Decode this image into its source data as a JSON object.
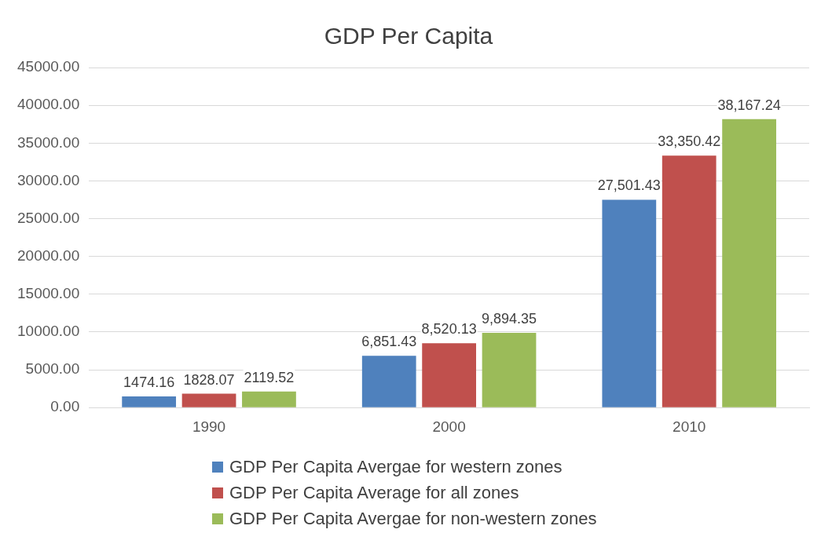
{
  "chart_data": {
    "type": "bar",
    "title": "GDP Per Capita",
    "categories": [
      "1990",
      "2000",
      "2010"
    ],
    "series": [
      {
        "name": "GDP Per Capita Avergae for western zones",
        "color": "#4f81bd",
        "values": [
          1474.16,
          6851.43,
          27501.43
        ],
        "value_labels": [
          "1474.16",
          "6,851.43",
          "27,501.43"
        ]
      },
      {
        "name": "GDP Per Capita Average for all zones",
        "color": "#c0504d",
        "values": [
          1828.07,
          8520.13,
          33350.42
        ],
        "value_labels": [
          "1828.07",
          "8,520.13",
          "33,350.42"
        ]
      },
      {
        "name": "GDP Per Capita Avergae for non-western zones",
        "color": "#9bbb59",
        "values": [
          2119.52,
          9894.35,
          38167.24
        ],
        "value_labels": [
          "2119.52",
          "9,894.35",
          "38,167.24"
        ]
      }
    ],
    "ylim": [
      0,
      45000
    ],
    "yticks": [
      {
        "value": 0,
        "label": "0.00"
      },
      {
        "value": 5000,
        "label": "5000.00"
      },
      {
        "value": 10000,
        "label": "10000.00"
      },
      {
        "value": 15000,
        "label": "15000.00"
      },
      {
        "value": 20000,
        "label": "20000.00"
      },
      {
        "value": 25000,
        "label": "25000.00"
      },
      {
        "value": 30000,
        "label": "30000.00"
      },
      {
        "value": 35000,
        "label": "35000.00"
      },
      {
        "value": 40000,
        "label": "40000.00"
      },
      {
        "value": 45000,
        "label": "45000.00"
      }
    ],
    "grid": "y",
    "legend": "bottom"
  }
}
